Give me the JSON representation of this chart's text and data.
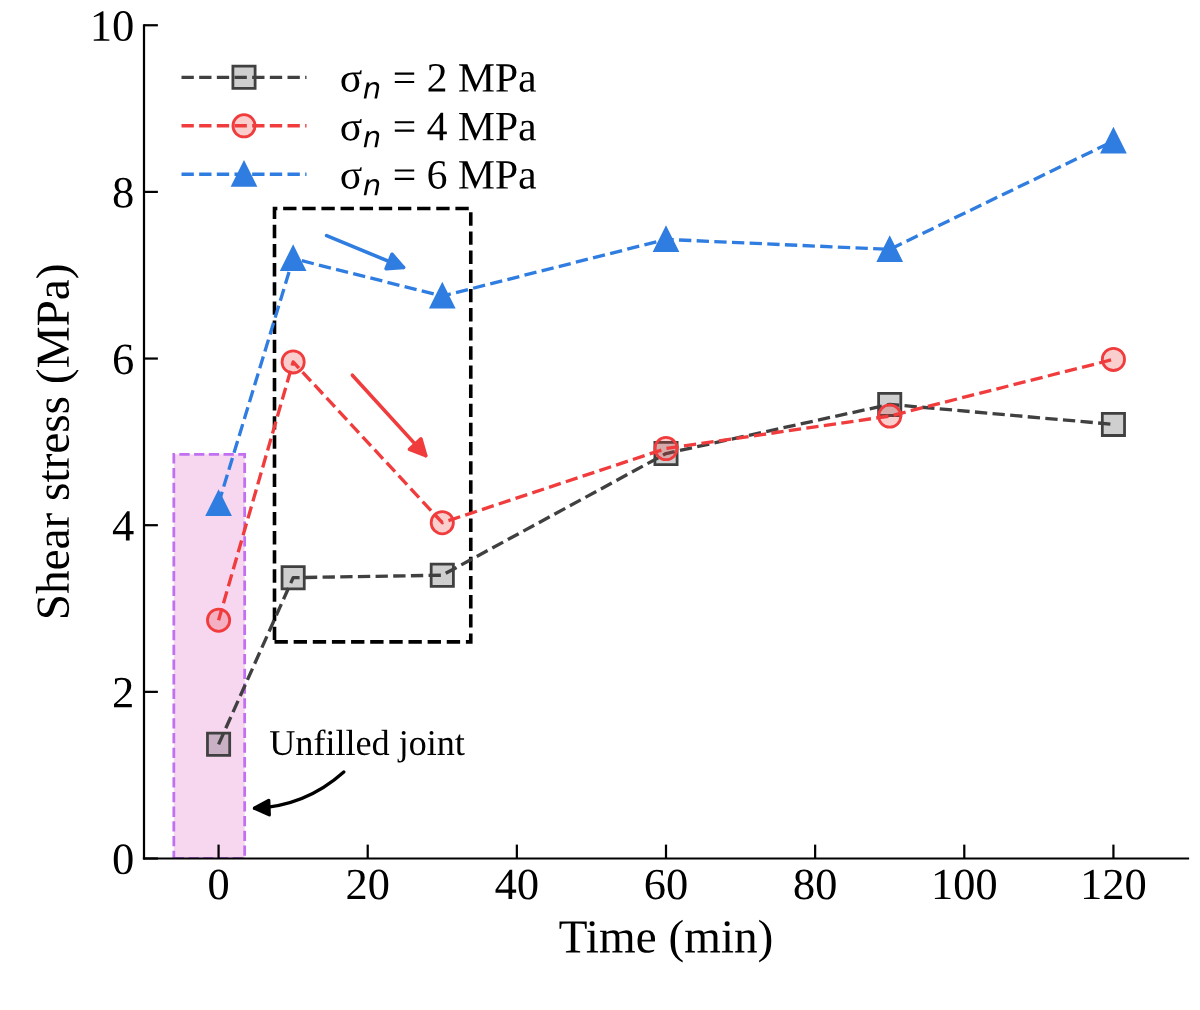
{
  "chart_data": {
    "type": "line",
    "xlabel": "Time (min)",
    "ylabel": "Shear stress (MPa)",
    "x": [
      0,
      10,
      30,
      60,
      90,
      120
    ],
    "series": [
      {
        "name": "σ$_{n}$ = 2 MPa",
        "color": "#404040",
        "marker": "square",
        "values": [
          1.37,
          3.37,
          3.4,
          4.86,
          5.45,
          5.21
        ]
      },
      {
        "name": "σ$_{n}$ = 4 MPa",
        "color": "#f03c3c",
        "marker": "circle",
        "values": [
          2.86,
          5.96,
          4.03,
          4.92,
          5.31,
          5.99
        ]
      },
      {
        "name": "σ$_{n}$ = 6 MPa",
        "color": "#2f7de1",
        "marker": "triangle",
        "values": [
          4.26,
          7.2,
          6.75,
          7.43,
          7.31,
          8.61
        ]
      }
    ],
    "xlim": [
      -10,
      130
    ],
    "xticks": [
      0,
      20,
      40,
      60,
      80,
      100,
      120
    ],
    "ylim": [
      0,
      10
    ],
    "yticks": [
      0,
      2,
      4,
      6,
      8,
      10
    ],
    "line_style": "dashed",
    "grid": false,
    "legend": "top left",
    "bands": [
      {
        "axis": "x",
        "from": -6,
        "to": 3.5,
        "color": "#f7d6f0"
      }
    ],
    "annotations": [
      "Unfilled joint"
    ]
  }
}
